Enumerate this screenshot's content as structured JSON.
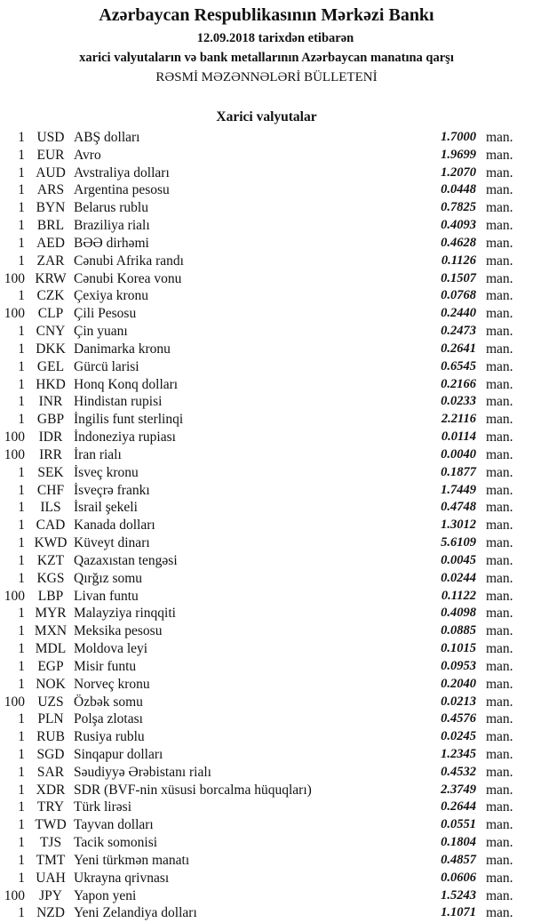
{
  "header": {
    "bank": "Azərbaycan Respublikasının Mərkəzi Bankı",
    "date_line": "12.09.2018  tarixdən etibarən",
    "description": "xarici valyutaların və bank metallarının Azərbaycan manatına qarşı",
    "bulletin_title": "RƏSMİ MƏZƏNNƏLƏRİ BÜLLETENİ"
  },
  "section": {
    "title": "Xarici valyutalar",
    "unit_label": "man.",
    "rows": [
      {
        "qty": "1",
        "code": "USD",
        "name": "ABŞ dolları",
        "rate": "1.7000"
      },
      {
        "qty": "1",
        "code": "EUR",
        "name": "Avro",
        "rate": "1.9699"
      },
      {
        "qty": "1",
        "code": "AUD",
        "name": "Avstraliya dolları",
        "rate": "1.2070"
      },
      {
        "qty": "1",
        "code": "ARS",
        "name": "Argentina pesosu",
        "rate": "0.0448"
      },
      {
        "qty": "1",
        "code": "BYN",
        "name": "Belarus rublu",
        "rate": "0.7825"
      },
      {
        "qty": "1",
        "code": "BRL",
        "name": "Braziliya rialı",
        "rate": "0.4093"
      },
      {
        "qty": "1",
        "code": "AED",
        "name": "BƏƏ dirhəmi",
        "rate": "0.4628"
      },
      {
        "qty": "1",
        "code": "ZAR",
        "name": "Cənubi Afrika randı",
        "rate": "0.1126"
      },
      {
        "qty": "100",
        "code": "KRW",
        "name": "Cənubi Korea vonu",
        "rate": "0.1507"
      },
      {
        "qty": "1",
        "code": "CZK",
        "name": "Çexiya kronu",
        "rate": "0.0768"
      },
      {
        "qty": "100",
        "code": "CLP",
        "name": "Çili Pesosu",
        "rate": "0.2440"
      },
      {
        "qty": "1",
        "code": "CNY",
        "name": "Çin yuanı",
        "rate": "0.2473"
      },
      {
        "qty": "1",
        "code": "DKK",
        "name": "Danimarka kronu",
        "rate": "0.2641"
      },
      {
        "qty": "1",
        "code": "GEL",
        "name": "Gürcü larisi",
        "rate": "0.6545"
      },
      {
        "qty": "1",
        "code": "HKD",
        "name": "Honq Konq dolları",
        "rate": "0.2166"
      },
      {
        "qty": "1",
        "code": "INR",
        "name": "Hindistan rupisi",
        "rate": "0.0233"
      },
      {
        "qty": "1",
        "code": "GBP",
        "name": "İngilis funt sterlinqi",
        "rate": "2.2116"
      },
      {
        "qty": "100",
        "code": "IDR",
        "name": "İndoneziya rupiası",
        "rate": "0.0114"
      },
      {
        "qty": "100",
        "code": "IRR",
        "name": "İran rialı",
        "rate": "0.0040"
      },
      {
        "qty": "1",
        "code": "SEK",
        "name": "İsveç kronu",
        "rate": "0.1877"
      },
      {
        "qty": "1",
        "code": "CHF",
        "name": "İsveçrə frankı",
        "rate": "1.7449"
      },
      {
        "qty": "1",
        "code": "ILS",
        "name": "İsrail şekeli",
        "rate": "0.4748"
      },
      {
        "qty": "1",
        "code": "CAD",
        "name": "Kanada dolları",
        "rate": "1.3012"
      },
      {
        "qty": "1",
        "code": "KWD",
        "name": "Küveyt dinarı",
        "rate": "5.6109"
      },
      {
        "qty": "1",
        "code": "KZT",
        "name": "Qazaxıstan tengəsi",
        "rate": "0.0045"
      },
      {
        "qty": "1",
        "code": "KGS",
        "name": "Qırğız somu",
        "rate": "0.0244"
      },
      {
        "qty": "100",
        "code": "LBP",
        "name": "Livan funtu",
        "rate": "0.1122"
      },
      {
        "qty": "1",
        "code": "MYR",
        "name": "Malayziya rinqqiti",
        "rate": "0.4098"
      },
      {
        "qty": "1",
        "code": "MXN",
        "name": "Meksika pesosu",
        "rate": "0.0885"
      },
      {
        "qty": "1",
        "code": "MDL",
        "name": "Moldova leyi",
        "rate": "0.1015"
      },
      {
        "qty": "1",
        "code": "EGP",
        "name": "Misir funtu",
        "rate": "0.0953"
      },
      {
        "qty": "1",
        "code": "NOK",
        "name": "Norveç kronu",
        "rate": "0.2040"
      },
      {
        "qty": "100",
        "code": "UZS",
        "name": "Özbək somu",
        "rate": "0.0213"
      },
      {
        "qty": "1",
        "code": "PLN",
        "name": "Polşa zlotası",
        "rate": "0.4576"
      },
      {
        "qty": "1",
        "code": "RUB",
        "name": "Rusiya rublu",
        "rate": "0.0245"
      },
      {
        "qty": "1",
        "code": "SGD",
        "name": "Sinqapur dolları",
        "rate": "1.2345"
      },
      {
        "qty": "1",
        "code": "SAR",
        "name": "Səudiyyə Ərəbistanı rialı",
        "rate": "0.4532"
      },
      {
        "qty": "1",
        "code": "XDR",
        "name": "SDR (BVF-nin xüsusi borcalma hüquqları)",
        "rate": "2.3749"
      },
      {
        "qty": "1",
        "code": "TRY",
        "name": "Türk lirəsi",
        "rate": "0.2644"
      },
      {
        "qty": "1",
        "code": "TWD",
        "name": "Tayvan dolları",
        "rate": "0.0551"
      },
      {
        "qty": "1",
        "code": "TJS",
        "name": "Tacik somonisi",
        "rate": "0.1804"
      },
      {
        "qty": "1",
        "code": "TMT",
        "name": "Yeni türkmən manatı",
        "rate": "0.4857"
      },
      {
        "qty": "1",
        "code": "UAH",
        "name": "Ukrayna qrivnası",
        "rate": "0.0606"
      },
      {
        "qty": "100",
        "code": "JPY",
        "name": "Yapon yeni",
        "rate": "1.5243"
      },
      {
        "qty": "1",
        "code": "NZD",
        "name": "Yeni Zelandiya dolları",
        "rate": "1.1071"
      }
    ]
  }
}
